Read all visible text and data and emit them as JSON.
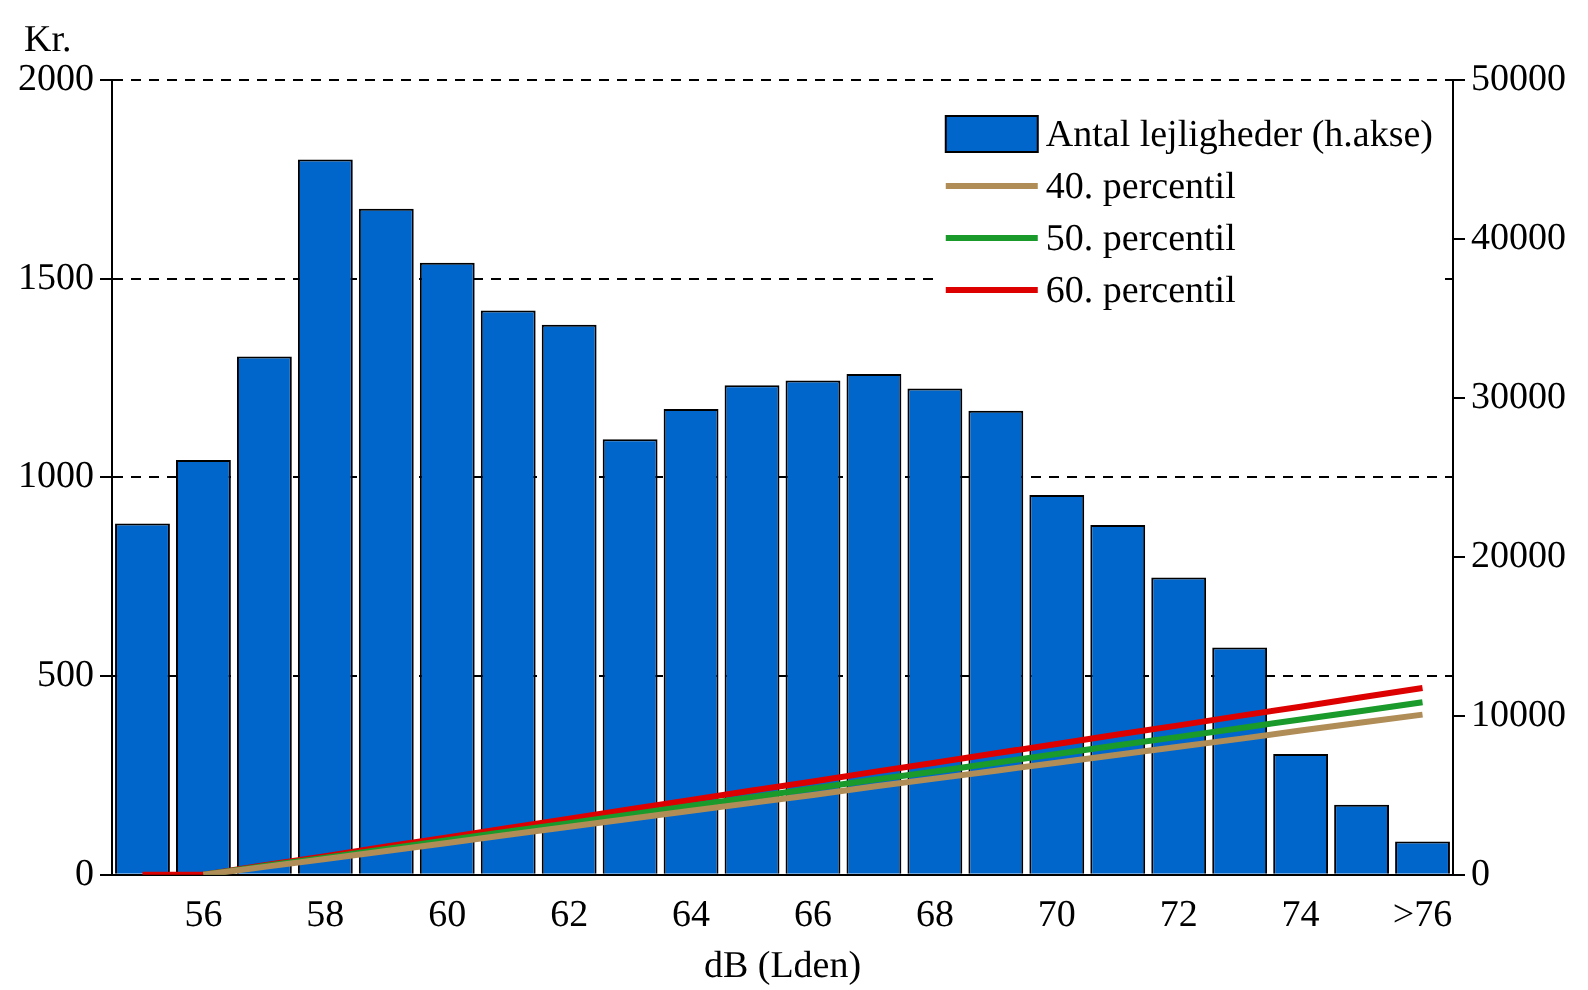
{
  "chart_data": {
    "type": "bar",
    "ylabel": "Kr.",
    "xlabel": "dB (Lden)",
    "categories": [
      null,
      "56",
      null,
      "58",
      null,
      "60",
      null,
      "62",
      null,
      "64",
      null,
      "66",
      null,
      "68",
      null,
      "70",
      null,
      "72",
      null,
      "74",
      null,
      ">76"
    ],
    "series": [
      {
        "name": "Antal lejligheder (h.akse)",
        "axis": "y2",
        "color": "#0066cc",
        "values": [
          22100,
          26100,
          32600,
          45000,
          41900,
          38500,
          35500,
          34600,
          27400,
          29300,
          30800,
          31100,
          31500,
          30600,
          29200,
          23900,
          22000,
          18700,
          14300,
          7600,
          4400,
          2100
        ]
      },
      {
        "name": "40. percentil",
        "type": "line",
        "color": "#b08d57",
        "values": [
          null,
          0,
          20,
          40,
          60,
          80,
          101,
          121,
          141,
          161,
          181,
          201,
          222,
          242,
          262,
          282,
          302,
          322,
          342,
          363,
          383,
          403
        ]
      },
      {
        "name": "50. percentil",
        "type": "line",
        "color": "#1a9a2a",
        "values": [
          null,
          0,
          22,
          43,
          65,
          87,
          109,
          130,
          152,
          174,
          195,
          217,
          239,
          260,
          282,
          304,
          326,
          347,
          369,
          391,
          412,
          434
        ]
      },
      {
        "name": "60. percentil",
        "type": "line",
        "color": "#dd0000",
        "values": [
          0,
          0,
          24,
          47,
          71,
          94,
          118,
          141,
          165,
          188,
          212,
          235,
          259,
          282,
          306,
          329,
          353,
          376,
          400,
          423,
          447,
          470
        ]
      }
    ],
    "ylim": [
      0,
      2000
    ],
    "yticks": [
      0,
      500,
      1000,
      1500,
      2000
    ],
    "y2lim": [
      0,
      50000
    ],
    "y2ticks": [
      0,
      10000,
      20000,
      30000,
      40000,
      50000
    ],
    "grid": "y",
    "legend": "top right",
    "marker": "none"
  }
}
